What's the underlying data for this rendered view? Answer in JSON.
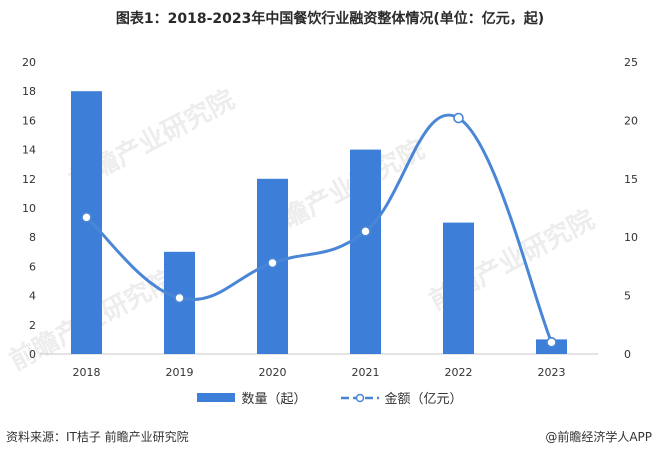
{
  "title": "图表1：2018-2023年中国餐饮行业融资整体情况(单位：亿元，起)",
  "footer": {
    "source": "资料来源：IT桔子 前瞻产业研究院",
    "brand": "@前瞻经济学人APP"
  },
  "watermark": "前瞻产业研究院",
  "colors": {
    "bar": "#3d7fd8",
    "line": "#4a86d6",
    "axis": "#c8c8c8"
  },
  "chart_data": {
    "type": "bar",
    "categories": [
      "2018",
      "2019",
      "2020",
      "2021",
      "2022",
      "2023"
    ],
    "series": [
      {
        "name": "数量（起）",
        "type": "bar",
        "axis": "left",
        "values": [
          18,
          7,
          12,
          14,
          9,
          1
        ]
      },
      {
        "name": "金额（亿元）",
        "type": "line",
        "axis": "right",
        "values": [
          11.7,
          4.8,
          7.8,
          10.5,
          20.2,
          1.0
        ]
      }
    ],
    "y_left": {
      "ylim": [
        0,
        20
      ],
      "ticks": [
        "0",
        "2",
        "4",
        "6",
        "8",
        "10",
        "12",
        "14",
        "16",
        "18",
        "20"
      ]
    },
    "y_right": {
      "ylim": [
        0,
        25
      ],
      "ticks": [
        "0",
        "5",
        "10",
        "15",
        "20",
        "25"
      ]
    },
    "grid": false,
    "legend_position": "bottom-center"
  }
}
